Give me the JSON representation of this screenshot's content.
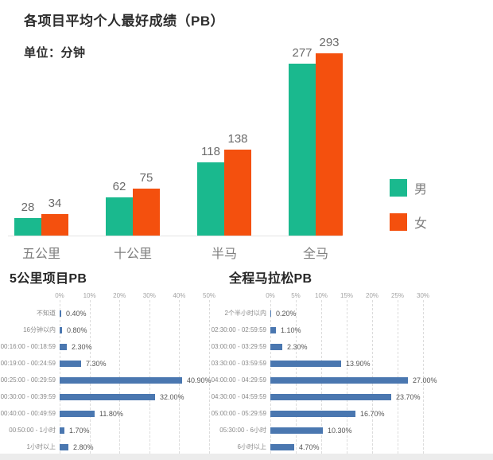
{
  "chart_data": [
    {
      "type": "bar",
      "title": "各项目平均个人最好成绩（PB）",
      "subtitle": "单位：分钟",
      "categories": [
        "五公里",
        "十公里",
        "半马",
        "全马"
      ],
      "series": [
        {
          "name": "男",
          "color": "#1ab98e",
          "values": [
            28,
            62,
            118,
            277
          ]
        },
        {
          "name": "女",
          "color": "#f4500e",
          "values": [
            34,
            75,
            138,
            293
          ]
        }
      ],
      "ylim": [
        0,
        300
      ],
      "legend_position": "right",
      "value_labels_shown": true,
      "grid": false
    },
    {
      "type": "bar-horizontal",
      "title": "5公里项目PB",
      "categories": [
        "不知道",
        "16分钟以内",
        "00:16:00 - 00:18:59",
        "00:19:00 - 00:24:59",
        "00:25:00 - 00:29:59",
        "00:30:00 - 00:39:59",
        "00:40:00 - 00:49:59",
        "00:50:00 - 1小时",
        "1小时以上"
      ],
      "values": [
        0.4,
        0.8,
        2.3,
        7.3,
        40.9,
        32.0,
        11.8,
        1.7,
        2.8
      ],
      "value_labels": [
        "0.40%",
        "0.80%",
        "2.30%",
        "7.30%",
        "40.90%",
        "32.00%",
        "11.80%",
        "1.70%",
        "2.80%"
      ],
      "x_ticks": [
        "0%",
        "10%",
        "20%",
        "30%",
        "40%",
        "50%"
      ],
      "xlim": [
        0,
        50
      ],
      "bar_color": "#4a77b0",
      "grid": "vertical-dashed"
    },
    {
      "type": "bar-horizontal",
      "title": "全程马拉松PB",
      "categories": [
        "2个半小时以内",
        "02:30:00 - 02:59:59",
        "03:00:00 - 03:29:59",
        "03:30:00 - 03:59:59",
        "04:00:00 - 04:29:59",
        "04:30:00 - 04:59:59",
        "05:00:00 - 05:29:59",
        "05:30:00 - 6小时",
        "6小时以上"
      ],
      "values": [
        0.2,
        1.1,
        2.3,
        13.9,
        27.0,
        23.7,
        16.7,
        10.3,
        4.7
      ],
      "value_labels": [
        "0.20%",
        "1.10%",
        "2.30%",
        "13.90%",
        "27.00%",
        "23.70%",
        "16.70%",
        "10.30%",
        "4.70%"
      ],
      "x_ticks": [
        "0%",
        "5%",
        "10%",
        "15%",
        "20%",
        "25%",
        "30%"
      ],
      "xlim": [
        0,
        30
      ],
      "bar_color": "#4a77b0",
      "grid": "vertical-dashed"
    }
  ],
  "colors": {
    "male": "#1ab98e",
    "female": "#f4500e",
    "horizontal_bar": "#4a77b0",
    "axis_line": "#e3e3e3",
    "gridline": "#dcdcdc",
    "bottom_strip": "#ececec"
  }
}
